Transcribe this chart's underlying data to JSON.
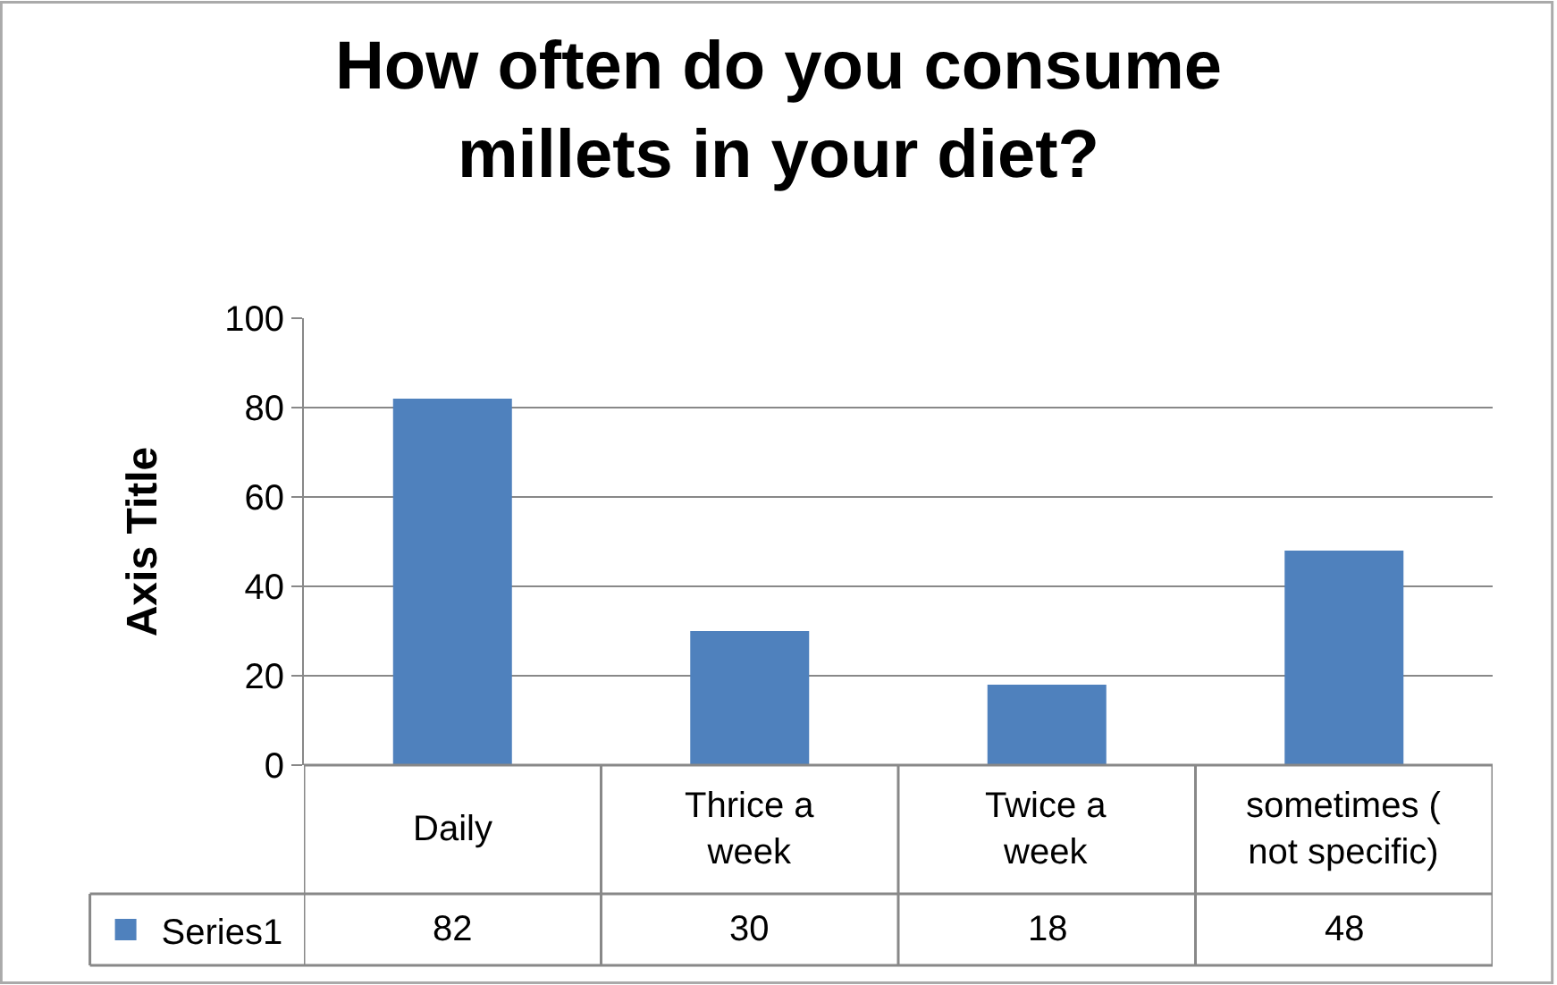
{
  "chart_data": {
    "type": "bar",
    "title": "How often do you consume millets in your diet?",
    "ylabel": "Axis Title",
    "categories": [
      "Daily",
      "Thrice a week",
      "Twice a week",
      "sometimes ( not specific)"
    ],
    "series": [
      {
        "name": "Series1",
        "color": "#4f81bd",
        "values": [
          82,
          30,
          18,
          48
        ]
      }
    ],
    "ylim": [
      0,
      100
    ],
    "yticks": [
      0,
      20,
      40,
      60,
      80,
      100
    ],
    "grid": "y",
    "legend": "bottom left",
    "data_labels": true
  }
}
